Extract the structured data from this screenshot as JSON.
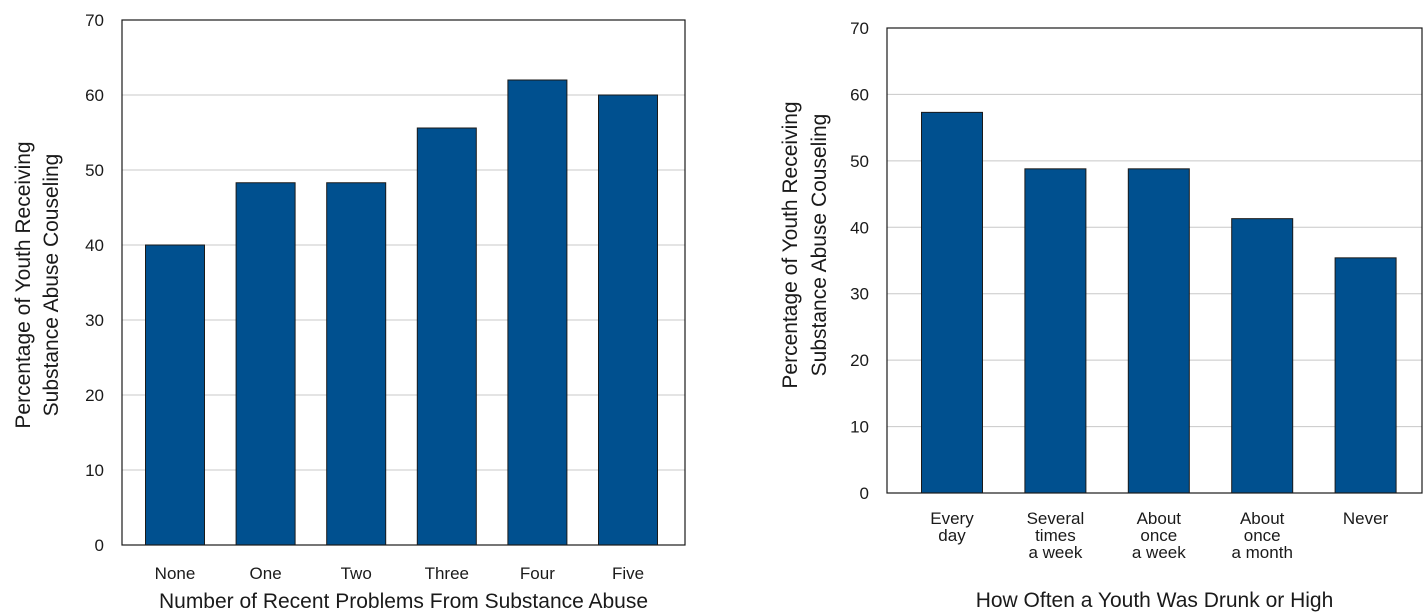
{
  "chart_data": [
    {
      "type": "bar",
      "title": "",
      "xlabel": "Number of Recent Problems From Substance Abuse",
      "ylabel": [
        "Percentage of Youth Receiving",
        "Substance Abuse Couseling"
      ],
      "ylim": [
        0,
        70
      ],
      "yticks": [
        0,
        10,
        20,
        30,
        40,
        50,
        60,
        70
      ],
      "categories": [
        [
          "None"
        ],
        [
          "One"
        ],
        [
          "Two"
        ],
        [
          "Three"
        ],
        [
          "Four"
        ],
        [
          "Five"
        ]
      ],
      "values": [
        40,
        48.3,
        48.3,
        55.6,
        62,
        60
      ],
      "bar_color": "#00508f",
      "grid": true
    },
    {
      "type": "bar",
      "title": "",
      "xlabel": "How Often a Youth Was Drunk or High",
      "ylabel": [
        "Percentage of Youth Receiving",
        "Substance Abuse Couseling"
      ],
      "ylim": [
        0,
        70
      ],
      "yticks": [
        0,
        10,
        20,
        30,
        40,
        50,
        60,
        70
      ],
      "categories": [
        [
          "Every",
          "day"
        ],
        [
          "Several",
          "times",
          "a week"
        ],
        [
          "About",
          "once",
          "a week"
        ],
        [
          "About",
          "once",
          "a month"
        ],
        [
          "Never"
        ]
      ],
      "values": [
        57.3,
        48.8,
        48.8,
        41.3,
        35.4
      ],
      "bar_color": "#00508f",
      "grid": true
    }
  ]
}
